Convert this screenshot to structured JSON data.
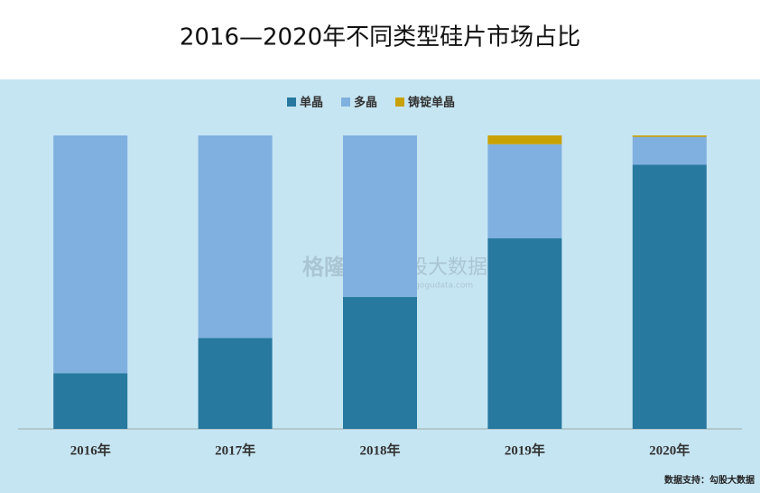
{
  "chart_data": {
    "type": "stacked-bar",
    "title": "2016—2020年不同类型硅片市场占比",
    "categories": [
      "2016年",
      "2017年",
      "2018年",
      "2019年",
      "2020年"
    ],
    "series": [
      {
        "name": "单晶",
        "color": "#2779a0",
        "values": [
          19,
          31,
          45,
          65,
          90
        ]
      },
      {
        "name": "多晶",
        "color": "#7fb0e0",
        "values": [
          81,
          69,
          55,
          32,
          9.5
        ]
      },
      {
        "name": "铸锭单晶",
        "color": "#c9a100",
        "values": [
          0,
          0,
          0,
          3,
          0.5
        ]
      }
    ],
    "ylim": [
      0,
      100
    ],
    "legend": "top",
    "source": "数据支持：勾股大数据"
  },
  "watermarks": [
    "格隆汇",
    "勾股大数据",
    "www.gogudata.com"
  ]
}
